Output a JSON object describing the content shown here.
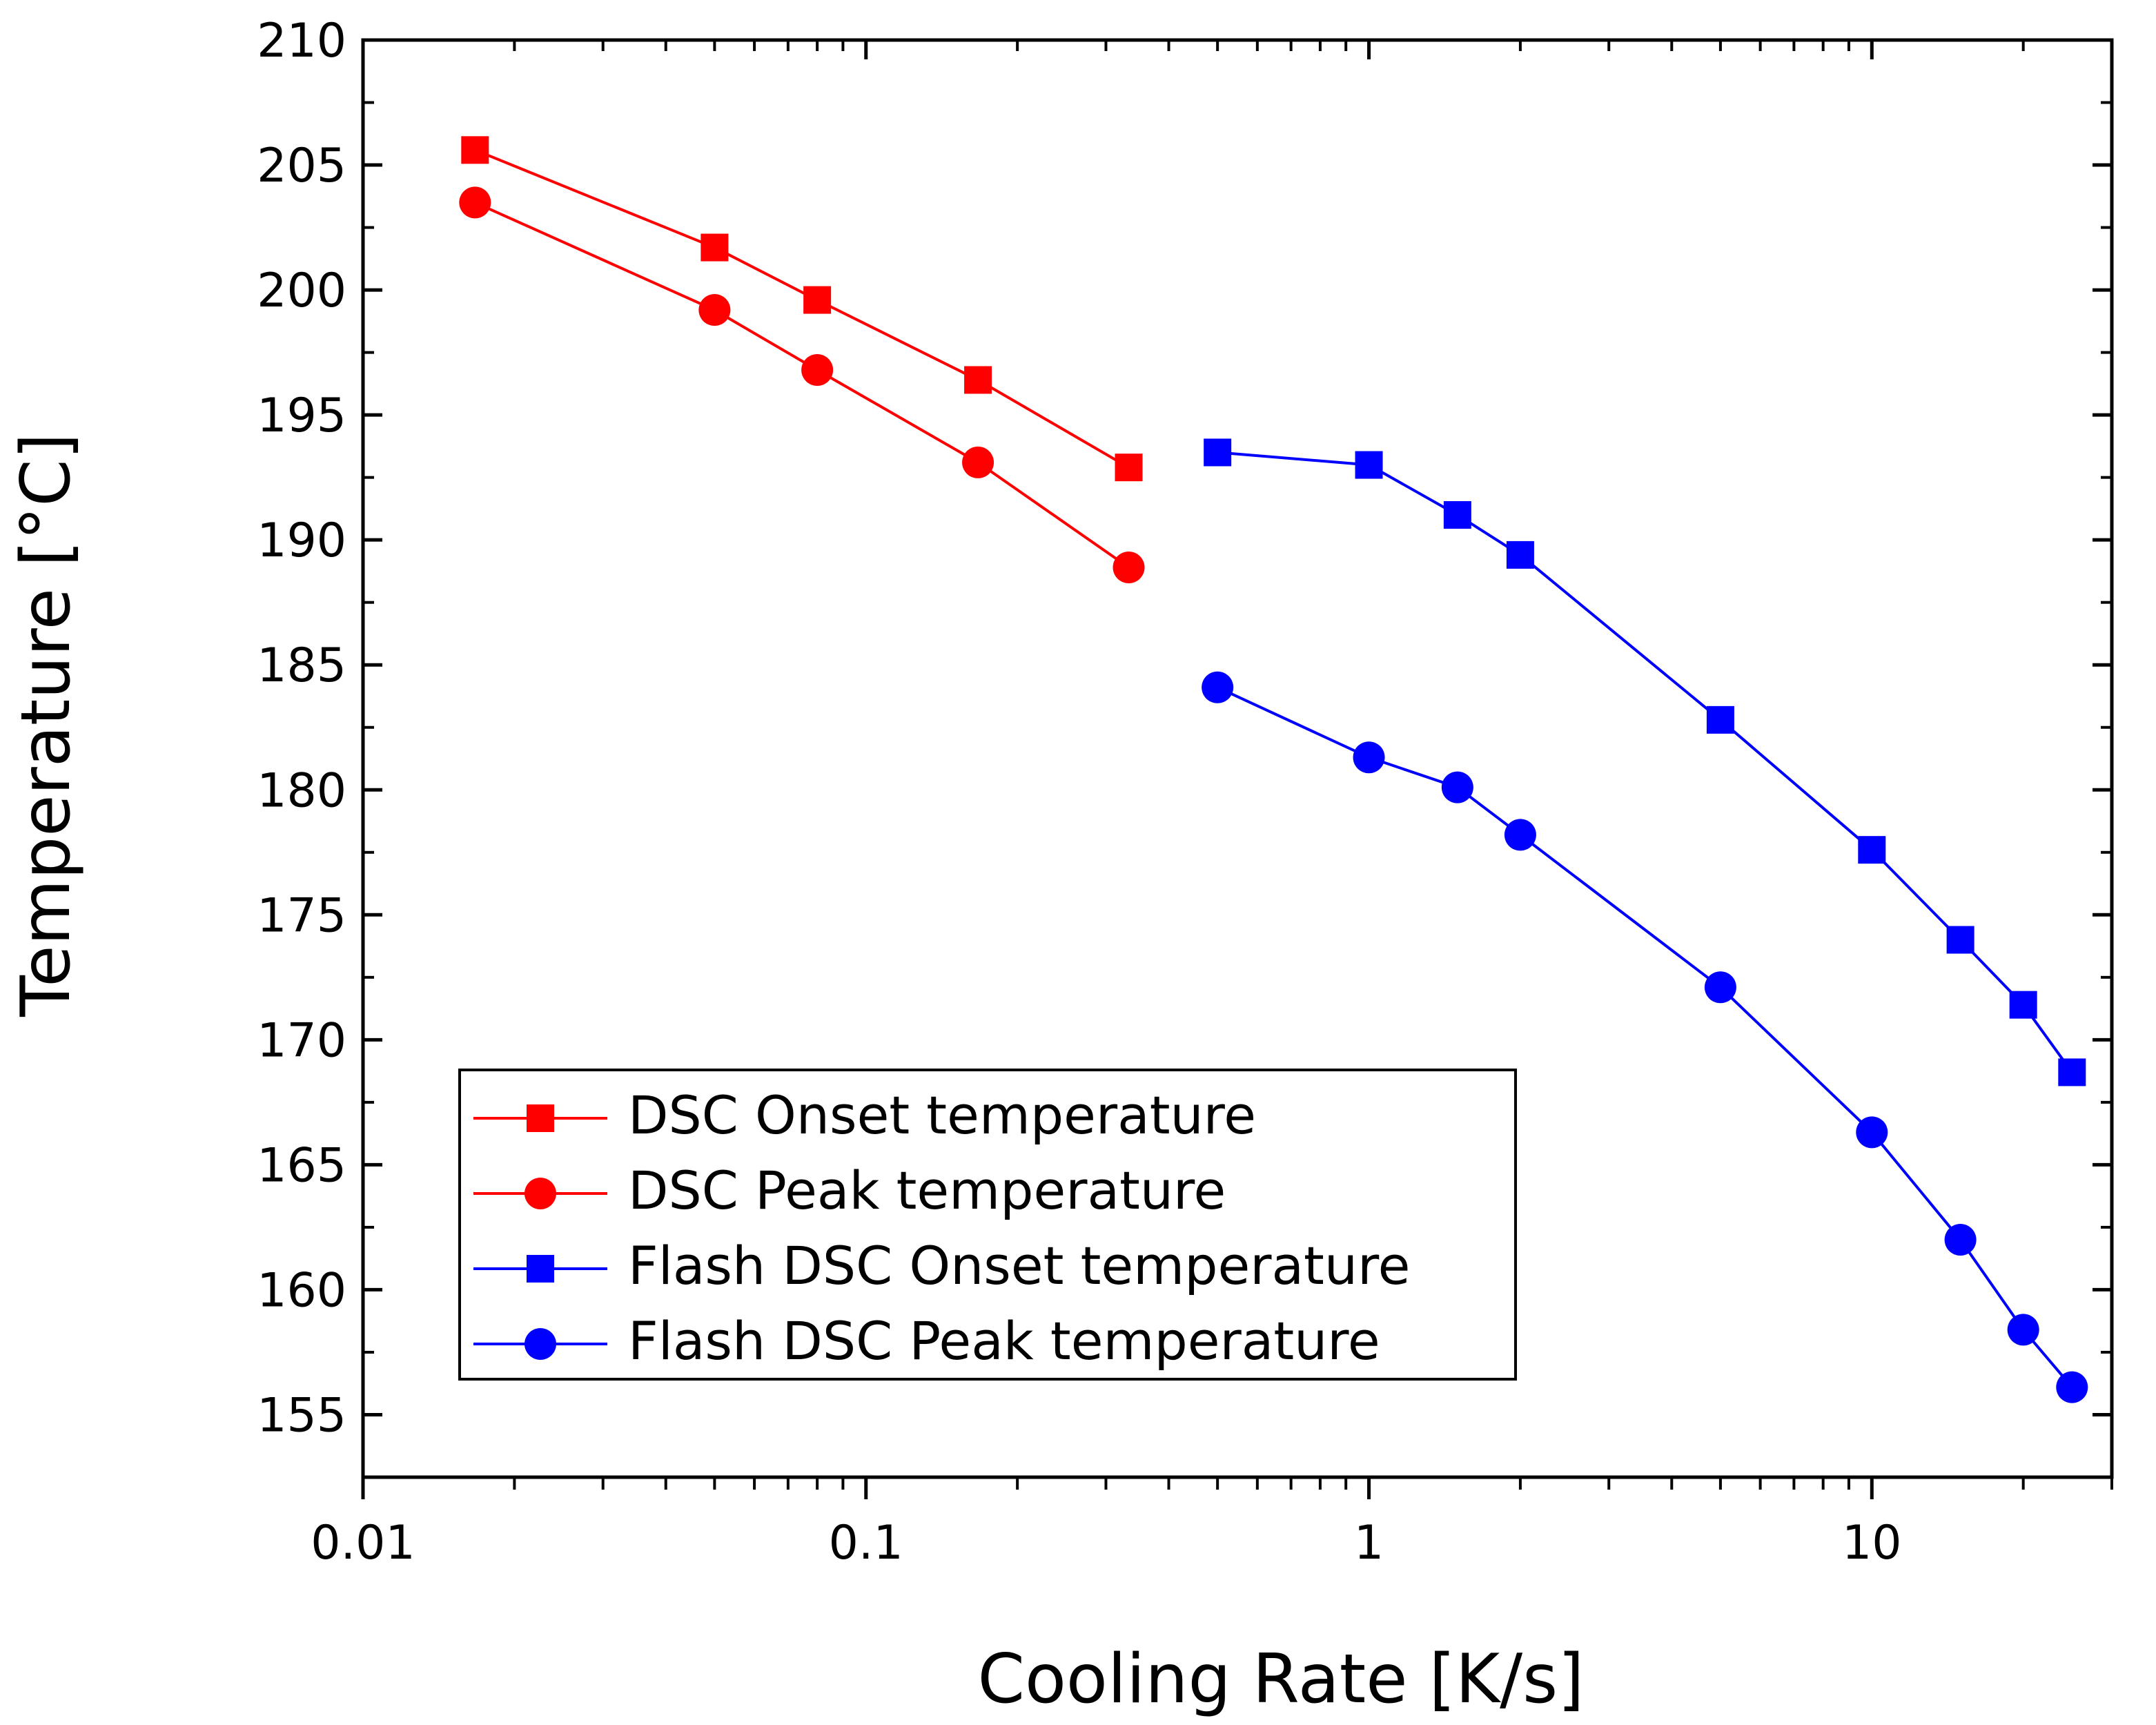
{
  "chart_data": {
    "type": "line",
    "title": "",
    "xlabel": "Cooling Rate [K/s]",
    "ylabel": "Temperature [°C]",
    "xscale": "log",
    "xlim": [
      0.01,
      30
    ],
    "ylim": [
      152.5,
      210
    ],
    "x_ticks": [
      0.01,
      0.1,
      1,
      10
    ],
    "x_tick_labels": [
      "0.01",
      "0.1",
      "1",
      "10"
    ],
    "y_ticks": [
      155,
      160,
      165,
      170,
      175,
      180,
      185,
      190,
      195,
      200,
      205,
      210
    ],
    "y_tick_labels": [
      "155",
      "160",
      "165",
      "170",
      "175",
      "180",
      "185",
      "190",
      "195",
      "200",
      "205",
      "210"
    ],
    "legend_position": "lower-left",
    "series": [
      {
        "name": "DSC Onset temperature",
        "color": "#ff0000",
        "marker": "square",
        "x": [
          0.0167,
          0.05,
          0.08,
          0.167,
          0.333
        ],
        "y": [
          205.6,
          201.7,
          199.6,
          196.4,
          192.9
        ]
      },
      {
        "name": "DSC Peak temperature",
        "color": "#ff0000",
        "marker": "circle",
        "x": [
          0.0167,
          0.05,
          0.08,
          0.167,
          0.333
        ],
        "y": [
          203.5,
          199.2,
          196.8,
          193.1,
          188.9
        ]
      },
      {
        "name": "Flash DSC Onset temperature",
        "color": "#0000ff",
        "marker": "square",
        "x": [
          0.5,
          1,
          1.5,
          2,
          5,
          10,
          15,
          20,
          25
        ],
        "y": [
          193.5,
          193.0,
          191.0,
          189.4,
          182.8,
          177.6,
          174.0,
          171.4,
          168.7
        ]
      },
      {
        "name": "Flash DSC Peak temperature",
        "color": "#0000ff",
        "marker": "circle",
        "x": [
          0.5,
          1,
          1.5,
          2,
          5,
          10,
          15,
          20,
          25
        ],
        "y": [
          184.1,
          181.3,
          180.1,
          178.2,
          172.1,
          166.3,
          162.0,
          158.4,
          156.1
        ]
      }
    ]
  }
}
